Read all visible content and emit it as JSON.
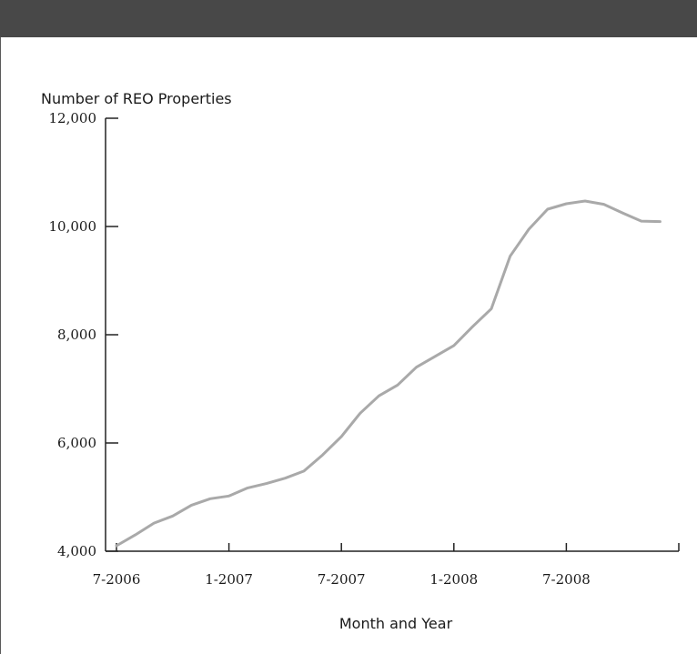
{
  "chart_data": {
    "type": "line",
    "title": "",
    "ylabel": "Number of REO Properties",
    "xlabel": "Month and Year",
    "ylim": [
      4000,
      12000
    ],
    "yticks": [
      4000,
      6000,
      8000,
      10000,
      12000
    ],
    "ytick_labels": [
      "4,000",
      "6,000",
      "8,000",
      "10,000",
      "12,000"
    ],
    "xticks": [
      "7-2006",
      "1-2007",
      "7-2007",
      "1-2008",
      "7-2008"
    ],
    "x": [
      "7-2006",
      "8-2006",
      "9-2006",
      "10-2006",
      "11-2006",
      "12-2006",
      "1-2007",
      "2-2007",
      "3-2007",
      "4-2007",
      "5-2007",
      "6-2007",
      "7-2007",
      "8-2007",
      "9-2007",
      "10-2007",
      "11-2007",
      "12-2007",
      "1-2008",
      "2-2008",
      "3-2008",
      "4-2008",
      "5-2008",
      "6-2008",
      "7-2008",
      "8-2008",
      "9-2008",
      "10-2008",
      "11-2008",
      "12-2008"
    ],
    "series": [
      {
        "name": "",
        "values": [
          4100,
          4300,
          4520,
          4650,
          4850,
          4970,
          5020,
          5170,
          5250,
          5350,
          5480,
          5780,
          6120,
          6550,
          6870,
          7070,
          7400,
          7600,
          7800,
          8150,
          8480,
          9450,
          9950,
          10320,
          10420,
          10470,
          10410,
          10250,
          10100,
          10090
        ]
      }
    ],
    "line_color": "#a9a9a9",
    "axis_color": "#222222",
    "grid": false,
    "legend": "none"
  }
}
